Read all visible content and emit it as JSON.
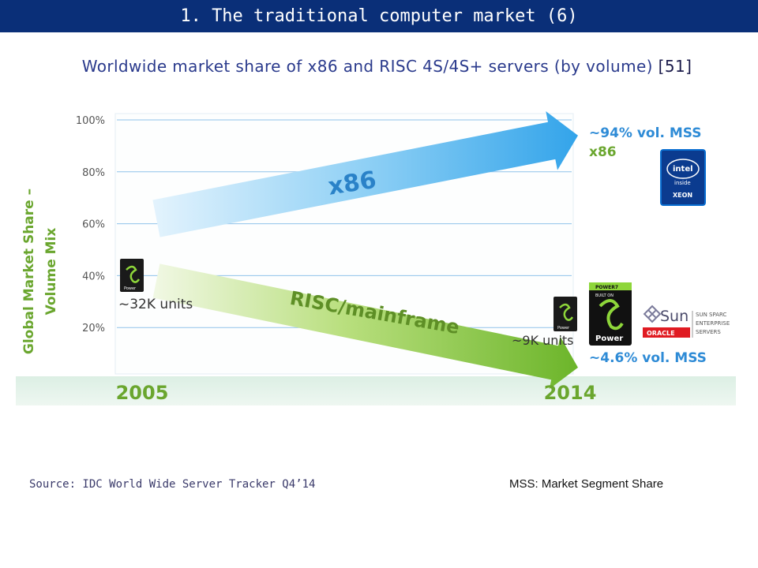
{
  "header": {
    "title": "1. The traditional computer market (6)"
  },
  "subtitle": {
    "text": "Worldwide market share of x86 and RISC 4S/4S+ servers (by volume)",
    "ref": "[51]"
  },
  "footer": {
    "source": "Source: IDC World Wide Server Tracker Q4’14",
    "mss_note": "MSS: Market Segment Share"
  },
  "chart_data": {
    "type": "line",
    "title": "",
    "ylabel": "Global Market Share – Volume Mix",
    "ylim": [
      0,
      100
    ],
    "yticks": [
      "100%",
      "80%",
      "60%",
      "40%",
      "20%"
    ],
    "categories": [
      "2005",
      "2014"
    ],
    "series": [
      {
        "name": "x86",
        "values": [
          62,
          94
        ],
        "color": "#3fa9e8",
        "end_label_1": "~94% vol. MSS",
        "end_label_2": "x86"
      },
      {
        "name": "RISC/mainframe",
        "values": [
          38,
          4.6
        ],
        "color": "#7cc23a",
        "start_label": "~32K units",
        "end_label": "~9K units",
        "end_label_2": "~4.6% vol. MSS"
      }
    ],
    "logos": {
      "intel_1": "intel",
      "intel_2": "inside",
      "intel_3": "XEON",
      "power_chip": "Power",
      "power_top": "POWER7",
      "power_built": "BUILT ON",
      "sun": "Sun",
      "oracle": "ORACLE",
      "sun_sparc_1": "SUN SPARC",
      "sun_sparc_2": "ENTERPRISE",
      "sun_sparc_3": "SERVERS"
    },
    "colors": {
      "label_green": "#6aa62e",
      "label_blue": "#2e8bd6",
      "year_green": "#6aa62e",
      "grid": "#8fc2ea"
    }
  }
}
